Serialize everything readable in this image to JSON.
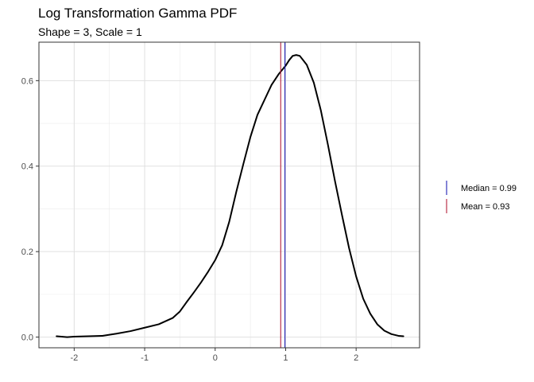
{
  "chart_data": {
    "type": "line",
    "title": "Log Transformation Gamma PDF",
    "subtitle": "Shape = 3, Scale = 1",
    "xlabel": "",
    "ylabel": "",
    "xlim": [
      -2.5,
      2.9
    ],
    "ylim": [
      -0.025,
      0.69
    ],
    "grid": true,
    "legend_position": "right",
    "x_ticks": [
      -2,
      -1,
      0,
      1,
      2
    ],
    "x_tick_labels": [
      "-2",
      "-1",
      "0",
      "1",
      "2"
    ],
    "y_ticks": [
      0.0,
      0.2,
      0.4,
      0.6
    ],
    "y_tick_labels": [
      "0.0",
      "0.2",
      "0.4",
      "0.6"
    ],
    "series": [
      {
        "color": "#000000",
        "x": [
          -2.25,
          -2.1,
          -2.0,
          -1.8,
          -1.6,
          -1.4,
          -1.2,
          -1.0,
          -0.8,
          -0.6,
          -0.5,
          -0.4,
          -0.3,
          -0.2,
          -0.1,
          0.0,
          0.1,
          0.2,
          0.3,
          0.4,
          0.5,
          0.6,
          0.7,
          0.8,
          0.9,
          1.0,
          1.05,
          1.1,
          1.15,
          1.2,
          1.3,
          1.4,
          1.5,
          1.6,
          1.7,
          1.8,
          1.9,
          2.0,
          2.1,
          2.2,
          2.3,
          2.4,
          2.5,
          2.6,
          2.67
        ],
        "y": [
          0.002,
          0.0,
          0.001,
          0.002,
          0.003,
          0.008,
          0.014,
          0.022,
          0.03,
          0.045,
          0.06,
          0.083,
          0.105,
          0.128,
          0.153,
          0.18,
          0.215,
          0.27,
          0.34,
          0.405,
          0.468,
          0.52,
          0.555,
          0.59,
          0.615,
          0.635,
          0.648,
          0.658,
          0.66,
          0.658,
          0.637,
          0.595,
          0.53,
          0.45,
          0.365,
          0.285,
          0.208,
          0.142,
          0.09,
          0.055,
          0.03,
          0.015,
          0.007,
          0.003,
          0.002
        ]
      }
    ],
    "vlines": [
      {
        "label": "Median = 0.99",
        "value": 0.99,
        "color": "#1f1fb4"
      },
      {
        "label": "Mean = 0.93",
        "value": 0.93,
        "color": "#b41f3a"
      }
    ]
  }
}
